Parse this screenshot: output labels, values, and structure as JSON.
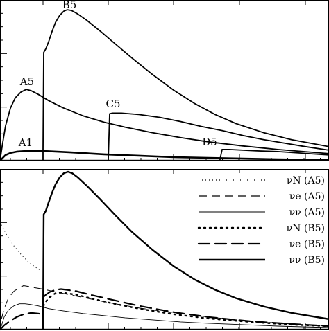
{
  "chart_data": [
    {
      "type": "line",
      "panel": "top",
      "title": "",
      "xlabel": "",
      "ylabel": "",
      "xlim": [
        0,
        474
      ],
      "ylim": [
        0,
        230
      ],
      "grid": false,
      "legend": "none",
      "series": [
        {
          "name": "A1",
          "label": "A1",
          "style": "thick",
          "label_at": [
            37,
            211
          ],
          "points": [
            [
              0,
              0
            ],
            [
              3,
              3
            ],
            [
              8,
              8
            ],
            [
              15,
              11
            ],
            [
              25,
              13
            ],
            [
              40,
              14
            ],
            [
              60,
              14
            ],
            [
              100,
              12
            ],
            [
              150,
              9
            ],
            [
              200,
              7
            ],
            [
              250,
              5
            ],
            [
              300,
              4
            ],
            [
              350,
              3
            ],
            [
              400,
              2
            ],
            [
              474,
              1
            ]
          ]
        },
        {
          "name": "A5",
          "label": "A5",
          "style": "medium",
          "label_at": [
            39,
            123
          ],
          "points": [
            [
              0,
              0
            ],
            [
              3,
              20
            ],
            [
              8,
              50
            ],
            [
              15,
              75
            ],
            [
              22,
              90
            ],
            [
              30,
              98
            ],
            [
              38,
              102
            ],
            [
              45,
              100
            ],
            [
              55,
              95
            ],
            [
              70,
              86
            ],
            [
              90,
              76
            ],
            [
              120,
              64
            ],
            [
              150,
              55
            ],
            [
              180,
              48
            ],
            [
              220,
              40
            ],
            [
              260,
              33
            ],
            [
              300,
              27
            ],
            [
              350,
              21
            ],
            [
              400,
              16
            ],
            [
              474,
              10
            ]
          ]
        },
        {
          "name": "B5",
          "label": "B5",
          "style": "medium",
          "label_at": [
            100,
            12
          ],
          "points": [
            [
              62,
              0
            ],
            [
              62,
              14
            ],
            [
              63,
              155
            ],
            [
              66,
              160
            ],
            [
              70,
              170
            ],
            [
              75,
              185
            ],
            [
              80,
              198
            ],
            [
              86,
              208
            ],
            [
              92,
              214
            ],
            [
              97,
              216
            ],
            [
              103,
              215
            ],
            [
              112,
              210
            ],
            [
              125,
              201
            ],
            [
              145,
              185
            ],
            [
              165,
              168
            ],
            [
              190,
              147
            ],
            [
              220,
              123
            ],
            [
              250,
              101
            ],
            [
              280,
              82
            ],
            [
              310,
              66
            ],
            [
              340,
              53
            ],
            [
              380,
              40
            ],
            [
              420,
              30
            ],
            [
              474,
              20
            ]
          ]
        },
        {
          "name": "C5",
          "label": "C5",
          "style": "medium",
          "label_at": [
            163,
            155
          ],
          "points": [
            [
              156,
              0
            ],
            [
              156,
              2
            ],
            [
              158,
              67
            ],
            [
              162,
              68
            ],
            [
              175,
              68
            ],
            [
              200,
              66
            ],
            [
              230,
              62
            ],
            [
              260,
              56
            ],
            [
              290,
              49
            ],
            [
              320,
              43
            ],
            [
              350,
              36
            ],
            [
              380,
              30
            ],
            [
              410,
              25
            ],
            [
              440,
              20
            ],
            [
              474,
              15
            ]
          ]
        },
        {
          "name": "D5",
          "label": "D5",
          "style": "medium",
          "label_at": [
            302,
            210
          ],
          "points": [
            [
              317,
              0
            ],
            [
              317,
              2
            ],
            [
              320,
              16
            ],
            [
              330,
              16
            ],
            [
              350,
              15
            ],
            [
              370,
              14
            ],
            [
              400,
              13
            ],
            [
              430,
              11
            ],
            [
              474,
              8
            ]
          ]
        }
      ]
    },
    {
      "type": "line",
      "panel": "bottom",
      "title": "",
      "xlabel": "",
      "ylabel": "",
      "xlim": [
        0,
        474
      ],
      "ylim": [
        0,
        230
      ],
      "grid": false,
      "legend": "top-right",
      "series": [
        {
          "name": "νN (A5)",
          "style": "fine-dotted",
          "legend_dash": "1,4",
          "legend_width": 1.3,
          "points": [
            [
              2,
              150
            ],
            [
              10,
              135
            ],
            [
              20,
              120
            ],
            [
              30,
              108
            ],
            [
              40,
              98
            ],
            [
              50,
              90
            ],
            [
              62,
              83
            ]
          ]
        },
        {
          "name": "νe (A5)",
          "style": "fine-dashed",
          "legend_dash": "12,7",
          "legend_width": 1.2,
          "points": [
            [
              2,
              15
            ],
            [
              6,
              30
            ],
            [
              12,
              45
            ],
            [
              20,
              55
            ],
            [
              28,
              60
            ],
            [
              34,
              63
            ],
            [
              40,
              62
            ],
            [
              50,
              60
            ],
            [
              62,
              58
            ],
            [
              80,
              54
            ],
            [
              100,
              50
            ],
            [
              130,
              44
            ],
            [
              160,
              38
            ],
            [
              200,
              31
            ],
            [
              250,
              24
            ],
            [
              300,
              18
            ],
            [
              360,
              12
            ],
            [
              420,
              8
            ],
            [
              474,
              5
            ]
          ]
        },
        {
          "name": "νν (A5)",
          "style": "thin-solid",
          "legend_dash": "",
          "legend_width": 1.1,
          "points": [
            [
              2,
              5
            ],
            [
              6,
              18
            ],
            [
              12,
              28
            ],
            [
              20,
              34
            ],
            [
              28,
              37
            ],
            [
              36,
              37
            ],
            [
              44,
              36
            ],
            [
              55,
              34
            ],
            [
              70,
              30
            ],
            [
              90,
              27
            ],
            [
              120,
              23
            ],
            [
              150,
              20
            ],
            [
              180,
              17
            ],
            [
              220,
              14
            ],
            [
              260,
              11
            ],
            [
              300,
              9
            ],
            [
              350,
              7
            ],
            [
              400,
              5
            ],
            [
              474,
              3
            ]
          ]
        },
        {
          "name": "νN (B5)",
          "style": "bold-dotted",
          "legend_dash": "2,6",
          "legend_width": 2.4,
          "points": [
            [
              62,
              2
            ],
            [
              63,
              35
            ],
            [
              66,
              40
            ],
            [
              70,
              45
            ],
            [
              75,
              49
            ],
            [
              80,
              52
            ],
            [
              88,
              53
            ],
            [
              96,
              52
            ],
            [
              110,
              50
            ],
            [
              130,
              45
            ],
            [
              160,
              38
            ],
            [
              200,
              30
            ],
            [
              250,
              22
            ],
            [
              300,
              16
            ],
            [
              360,
              11
            ],
            [
              420,
              7
            ],
            [
              474,
              5
            ]
          ]
        },
        {
          "name": "νe (B5)",
          "style": "bold-dashed",
          "legend_dash": "16,8",
          "legend_width": 2.3,
          "points": [
            [
              0,
              0
            ],
            [
              6,
              6
            ],
            [
              14,
              12
            ],
            [
              24,
              18
            ],
            [
              34,
              22
            ],
            [
              45,
              24
            ],
            [
              55,
              23
            ],
            [
              62,
              22
            ],
            [
              62,
              46
            ],
            [
              66,
              50
            ],
            [
              72,
              54
            ],
            [
              80,
              57
            ],
            [
              88,
              58
            ],
            [
              96,
              57
            ],
            [
              110,
              55
            ],
            [
              130,
              50
            ],
            [
              160,
              43
            ],
            [
              200,
              34
            ],
            [
              250,
              25
            ],
            [
              300,
              18
            ],
            [
              360,
              12
            ],
            [
              420,
              8
            ],
            [
              474,
              5
            ]
          ]
        },
        {
          "name": "νν (B5)",
          "style": "thick-solid",
          "legend_dash": "",
          "legend_width": 2.4,
          "points": [
            [
              62,
              0
            ],
            [
              62,
              8
            ],
            [
              63,
              165
            ],
            [
              66,
              170
            ],
            [
              70,
              182
            ],
            [
              75,
              196
            ],
            [
              80,
              208
            ],
            [
              86,
              218
            ],
            [
              92,
              224
            ],
            [
              98,
              226
            ],
            [
              104,
              224
            ],
            [
              112,
              218
            ],
            [
              125,
              206
            ],
            [
              145,
              186
            ],
            [
              165,
              165
            ],
            [
              190,
              140
            ],
            [
              220,
              114
            ],
            [
              250,
              91
            ],
            [
              280,
              72
            ],
            [
              310,
              57
            ],
            [
              340,
              45
            ],
            [
              380,
              33
            ],
            [
              420,
              24
            ],
            [
              474,
              15
            ]
          ]
        }
      ]
    }
  ]
}
